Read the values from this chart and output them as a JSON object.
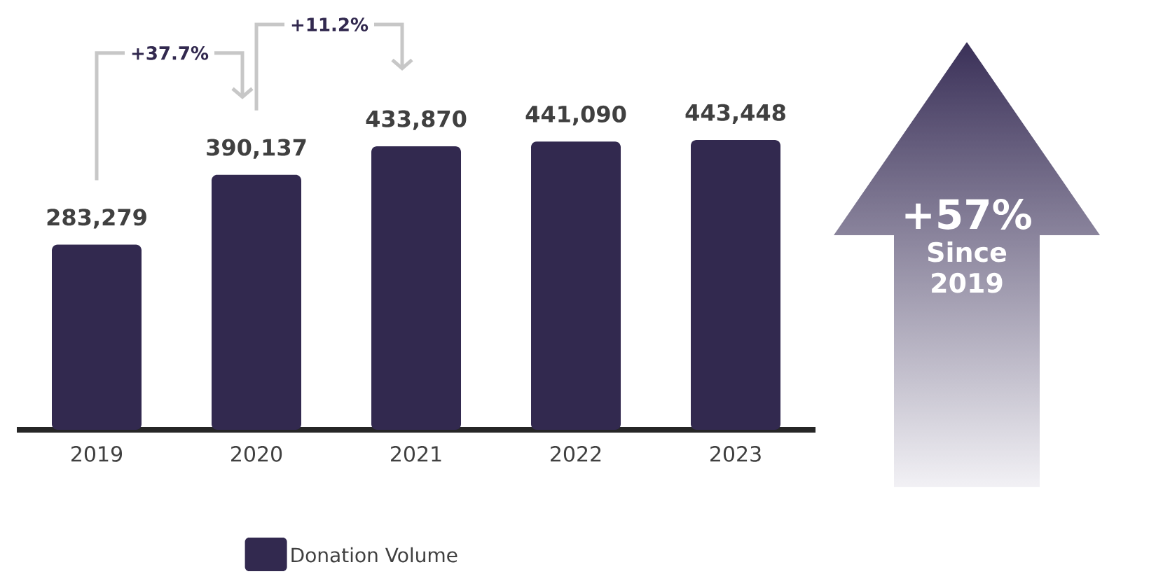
{
  "chart_data": {
    "type": "bar",
    "categories": [
      "2019",
      "2020",
      "2021",
      "2022",
      "2023"
    ],
    "series": [
      {
        "name": "Donation Volume",
        "color": "#32294f",
        "values": [
          283279,
          390137,
          433870,
          441090,
          443448
        ],
        "value_labels": [
          "283,279",
          "390,137",
          "433,870",
          "441,090",
          "443,448"
        ]
      }
    ],
    "legend": "bottom",
    "annotations": [
      "+37.7%",
      "+11.2%",
      "+57%",
      "Since 2019"
    ]
  }
}
